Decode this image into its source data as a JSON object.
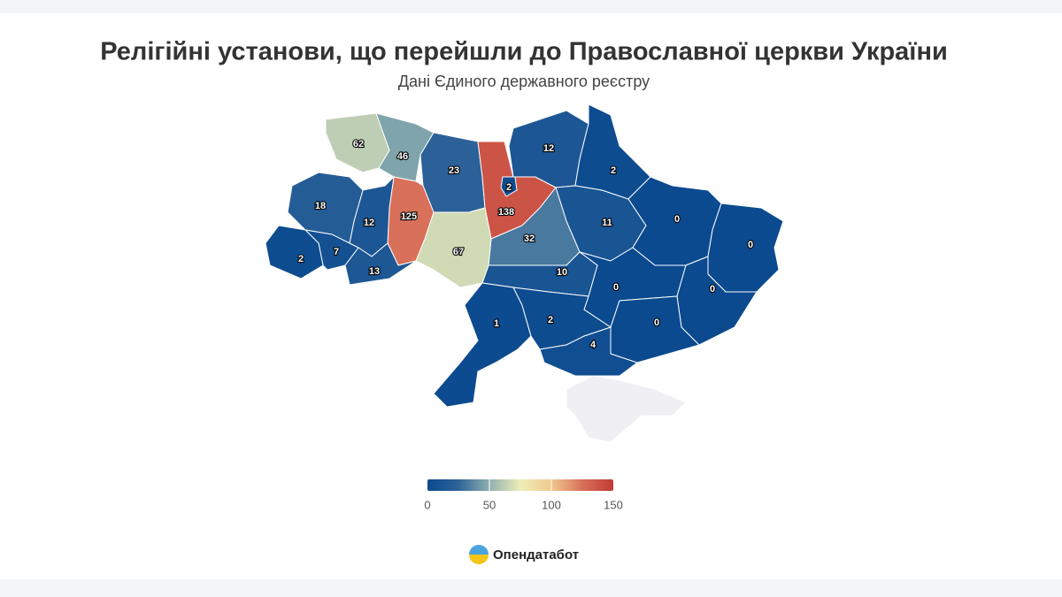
{
  "header": {
    "title": "Релігійні установи, що перейшли до Православної церкви України",
    "subtitle": "Дані Єдиного державного реєстру"
  },
  "map": {
    "regions": [
      62,
      46,
      23,
      138,
      2,
      12,
      2,
      11,
      0,
      0,
      0,
      0,
      0,
      32,
      10,
      1,
      2,
      4,
      67,
      125,
      12,
      18,
      7,
      2,
      13
    ],
    "color_scale": {
      "range": [
        0,
        150
      ],
      "ticks": [
        0,
        50,
        100,
        150
      ],
      "colors": [
        "#0b4a8f",
        "#2e6399",
        "#8fb0b0",
        "#eeeeb8",
        "#f1c98e",
        "#d8705a",
        "#c03a35"
      ]
    }
  },
  "footer": {
    "brand": "Опендатабот"
  }
}
